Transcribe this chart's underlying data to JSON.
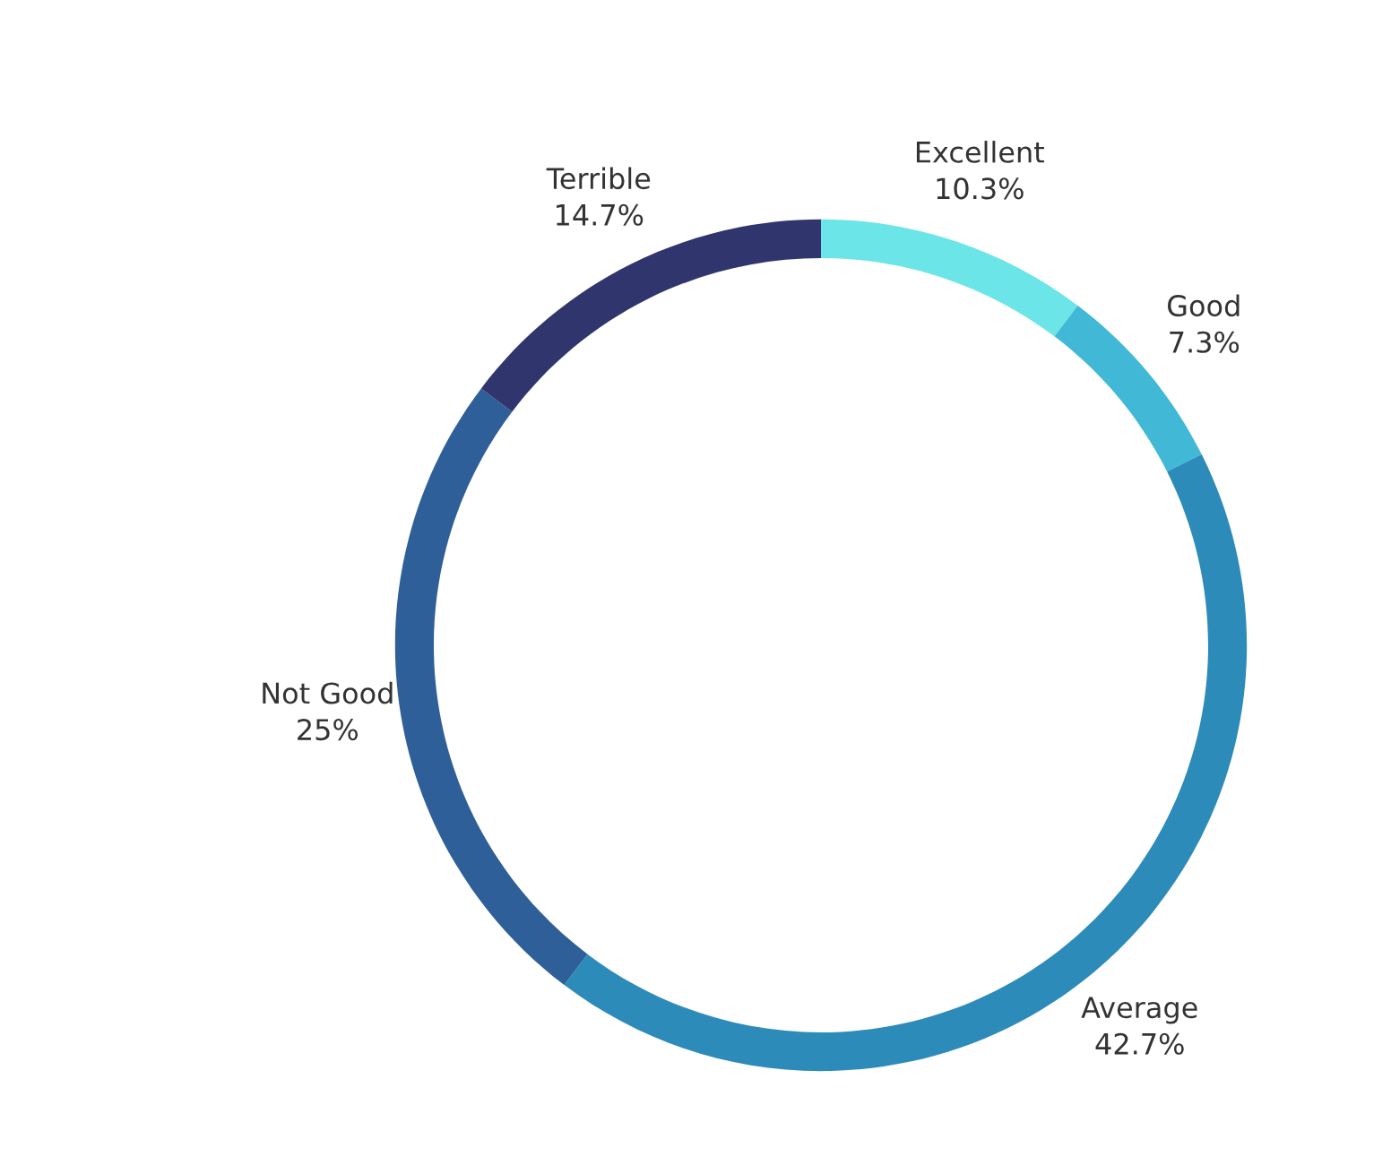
{
  "chart_data": {
    "type": "donut",
    "categories": [
      "Excellent",
      "Good",
      "Average",
      "Not Good",
      "Terrible"
    ],
    "values": [
      10.3,
      7.3,
      42.7,
      25,
      14.7
    ],
    "value_labels": [
      "10.3%",
      "7.3%",
      "42.7%",
      "25%",
      "14.7%"
    ],
    "colors": [
      "#6ce5e8",
      "#41b8d5",
      "#2d8bba",
      "#2f5f98",
      "#31356e"
    ],
    "legend": false
  }
}
